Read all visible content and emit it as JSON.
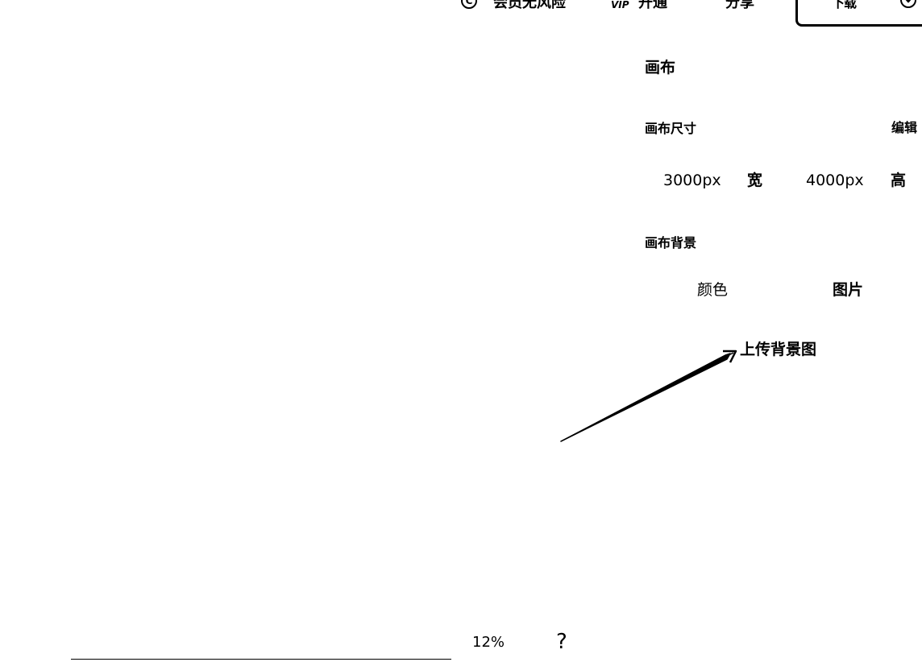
{
  "toolbar": {
    "copyright_symbol": "C",
    "risk_free_label": "会员无风险",
    "vip_badge": "VIP",
    "open_label": "开通",
    "share_label": "分享",
    "download_label": "下载",
    "icons": [
      "copyright-icon",
      "vip-icon",
      "chevron-down-icon"
    ]
  },
  "panel": {
    "title": "画布",
    "size": {
      "label": "画布尺寸",
      "edit_label": "编辑",
      "width_value": "3000px",
      "width_label": "宽",
      "height_value": "4000px",
      "height_label": "高"
    },
    "background": {
      "label": "画布背景",
      "color_option": "颜色",
      "image_option": "图片",
      "upload_label": "上传背景图"
    }
  },
  "footer": {
    "zoom": "12%",
    "help": "?"
  }
}
